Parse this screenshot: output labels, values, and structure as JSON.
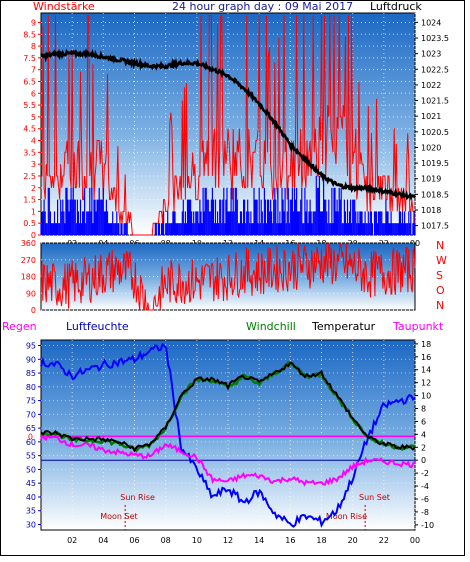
{
  "title": "24 hour graph day : 09 Mai 2017",
  "colors": {
    "wind": "#ff0000",
    "gust_bg": "#0000ff",
    "pressure": "#000000",
    "direction": "#ff0000",
    "humidity": "#0000ff",
    "temperature": "#000000",
    "windchill": "#008000",
    "dewpoint": "#ff00ff",
    "panel_top": "#1c68c4",
    "panel_bottom": "#ffffff"
  },
  "chart_data": [
    {
      "type": "line",
      "panel": "wind_pressure",
      "left_label": "Windstärke",
      "right_label": "Luftdruck",
      "x_ticks": [
        "02",
        "04",
        "06",
        "08",
        "10",
        "12",
        "14",
        "16",
        "18",
        "20",
        "22",
        "00"
      ],
      "y_left_ticks": [
        "0",
        "0.5",
        "1",
        "1.5",
        "2",
        "2.5",
        "3",
        "3.5",
        "4",
        "4.5",
        "5",
        "5.5",
        "6",
        "6.5",
        "7",
        "7.5",
        "8",
        "8.5",
        "9"
      ],
      "y_right_ticks": [
        "1017.5",
        "1018",
        "1018.5",
        "1019",
        "1019.5",
        "1020",
        "1020.5",
        "1021",
        "1021.5",
        "1022",
        "1022.5",
        "1023",
        "1023.5",
        "1024"
      ],
      "ylim_left": [
        0,
        9.4
      ],
      "ylim_right": [
        1017.2,
        1024.3
      ],
      "pressure_series": {
        "x": [
          0,
          1,
          2,
          3,
          4,
          5,
          6,
          7,
          8,
          9,
          10,
          11,
          12,
          13,
          14,
          15,
          16,
          17,
          18,
          19,
          20,
          21,
          22,
          23,
          24
        ],
        "values": [
          1022.9,
          1023.0,
          1023.0,
          1023.0,
          1022.9,
          1022.8,
          1022.7,
          1022.6,
          1022.6,
          1022.7,
          1022.7,
          1022.5,
          1022.3,
          1021.9,
          1021.4,
          1020.8,
          1020.1,
          1019.6,
          1019.1,
          1018.8,
          1018.7,
          1018.7,
          1018.6,
          1018.5,
          1018.4
        ]
      },
      "wind_levels": {
        "x": [
          0,
          1,
          2,
          3,
          4,
          5,
          6,
          7,
          8,
          9,
          10,
          11,
          12,
          13,
          14,
          15,
          16,
          17,
          18,
          19,
          20,
          21,
          22,
          23,
          24
        ],
        "gust": [
          3.5,
          4,
          4,
          4.5,
          4,
          2,
          0,
          0,
          2,
          3,
          4,
          5,
          5,
          4.5,
          4.5,
          4,
          4.5,
          5,
          6,
          5.5,
          5,
          2.5,
          3,
          2,
          1.5
        ],
        "mean": [
          1.5,
          1.8,
          1.8,
          2,
          1.8,
          1,
          0,
          0,
          1,
          1.5,
          2,
          2,
          2,
          2,
          2,
          2,
          2,
          2,
          2.3,
          2,
          1.5,
          1,
          1.3,
          1,
          0.8
        ]
      }
    },
    {
      "type": "scatter",
      "panel": "wind_direction",
      "y_ticks": [
        "0",
        "90",
        "180",
        "270",
        "360"
      ],
      "right_labels": [
        "N",
        "W",
        "S",
        "O",
        "N"
      ],
      "ylim": [
        0,
        360
      ],
      "x": [
        0,
        1,
        2,
        3,
        4,
        5,
        6,
        7,
        8,
        9,
        10,
        11,
        12,
        13,
        14,
        15,
        16,
        17,
        18,
        19,
        20,
        21,
        22,
        23,
        24
      ],
      "direction_mean": [
        150,
        130,
        140,
        160,
        200,
        220,
        180,
        0,
        140,
        160,
        150,
        170,
        180,
        210,
        200,
        220,
        230,
        240,
        260,
        250,
        230,
        190,
        200,
        210,
        220
      ]
    },
    {
      "type": "line",
      "panel": "temperature_humidity",
      "legend": [
        "Regen",
        "Luftfeuchte",
        "Windchill",
        "Temperatur",
        "Taupunkt"
      ],
      "y_left_ticks": [
        "30",
        "35",
        "40",
        "45",
        "50",
        "55",
        "60",
        "65",
        "70",
        "75",
        "80",
        "85",
        "90",
        "95"
      ],
      "y_right_ticks": [
        "-10",
        "-8",
        "-6",
        "-4",
        "-2",
        "0",
        "2",
        "4",
        "6",
        "8",
        "10",
        "12",
        "14",
        "16",
        "18"
      ],
      "rain_zero_label": "0",
      "ylim_left": [
        28,
        97
      ],
      "ylim_right": [
        -10.8,
        18.6
      ],
      "x": [
        0,
        1,
        2,
        3,
        4,
        5,
        6,
        7,
        8,
        9,
        10,
        11,
        12,
        13,
        14,
        15,
        16,
        17,
        18,
        19,
        20,
        21,
        22,
        23,
        24
      ],
      "humidity": [
        89,
        88,
        84,
        86,
        88,
        89,
        90,
        93,
        95,
        58,
        50,
        40,
        43,
        38,
        42,
        34,
        30,
        33,
        31,
        35,
        47,
        62,
        73,
        75,
        76
      ],
      "temperature": [
        4.3,
        4.2,
        3.3,
        3.3,
        3.2,
        2.8,
        1.8,
        2.5,
        5.0,
        10.0,
        12.5,
        12.5,
        11.5,
        13.0,
        12.0,
        13.5,
        15.0,
        13.0,
        13.5,
        10.0,
        6.5,
        3.5,
        2.5,
        2.0,
        2.0
      ],
      "windchill": [
        4.3,
        4.1,
        3.1,
        3.1,
        3.0,
        2.6,
        1.6,
        2.4,
        5.0,
        10.0,
        12.5,
        12.4,
        11.2,
        13.0,
        11.8,
        13.5,
        15.0,
        13.0,
        13.3,
        9.8,
        6.5,
        3.5,
        2.5,
        2.0,
        2.0
      ],
      "dewpoint": [
        3.6,
        3.4,
        2.4,
        2.3,
        1.6,
        1.2,
        0.8,
        0.6,
        2.4,
        1.4,
        0.4,
        -3.0,
        -3.3,
        -2.4,
        -2.4,
        -3.3,
        -2.8,
        -3.5,
        -3.6,
        -2.9,
        -1.0,
        0.0,
        -0.2,
        -0.5,
        -0.7
      ],
      "rain_zero": 0,
      "events": {
        "sun_rise_label": "Sun Rise",
        "moon_set_label": "Moon Set",
        "sun_set_label": "Sun Set",
        "moon_rise_label": "Moon Rise",
        "sun_rise_x": 5.4,
        "moon_set_x": 5.8,
        "sun_set_x": 20.8,
        "moon_rise_x": 20.6
      }
    }
  ]
}
